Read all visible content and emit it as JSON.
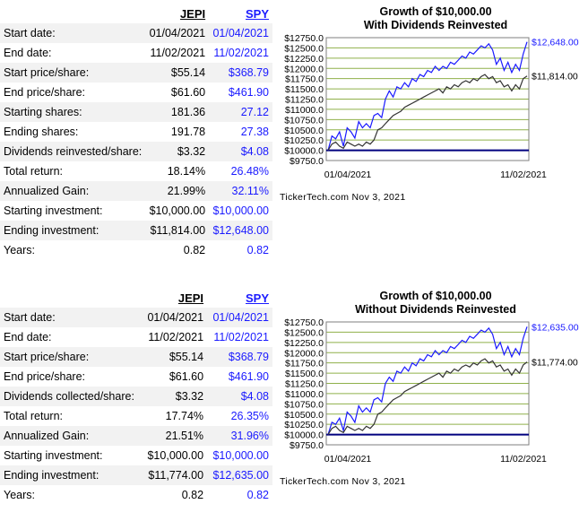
{
  "panels": [
    {
      "headers": {
        "a": "JEPI",
        "b": "SPY"
      },
      "rows": [
        {
          "label": "Start date:",
          "a": "01/04/2021",
          "b": "01/04/2021"
        },
        {
          "label": "End date:",
          "a": "11/02/2021",
          "b": "11/02/2021"
        },
        {
          "label": "Start price/share:",
          "a": "$55.14",
          "b": "$368.79"
        },
        {
          "label": "End price/share:",
          "a": "$61.60",
          "b": "$461.90"
        },
        {
          "label": "Starting shares:",
          "a": "181.36",
          "b": "27.12"
        },
        {
          "label": "Ending shares:",
          "a": "191.78",
          "b": "27.38"
        },
        {
          "label": "Dividends reinvested/share:",
          "a": "$3.32",
          "b": "$4.08"
        },
        {
          "label": "Total return:",
          "a": "18.14%",
          "b": "26.48%"
        },
        {
          "label": "Annualized Gain:",
          "a": "21.99%",
          "b": "32.11%"
        },
        {
          "label": "Starting investment:",
          "a": "$10,000.00",
          "b": "$10,000.00"
        },
        {
          "label": "Ending investment:",
          "a": "$11,814.00",
          "b": "$12,648.00"
        },
        {
          "label": "Years:",
          "a": "0.82",
          "b": "0.82"
        }
      ]
    },
    {
      "headers": {
        "a": "JEPI",
        "b": "SPY"
      },
      "rows": [
        {
          "label": "Start date:",
          "a": "01/04/2021",
          "b": "01/04/2021"
        },
        {
          "label": "End date:",
          "a": "11/02/2021",
          "b": "11/02/2021"
        },
        {
          "label": "Start price/share:",
          "a": "$55.14",
          "b": "$368.79"
        },
        {
          "label": "End price/share:",
          "a": "$61.60",
          "b": "$461.90"
        },
        {
          "label": "Dividends collected/share:",
          "a": "$3.32",
          "b": "$4.08"
        },
        {
          "label": "Total return:",
          "a": "17.74%",
          "b": "26.35%"
        },
        {
          "label": "Annualized Gain:",
          "a": "21.51%",
          "b": "31.96%"
        },
        {
          "label": "Starting investment:",
          "a": "$10,000.00",
          "b": "$10,000.00"
        },
        {
          "label": "Ending investment:",
          "a": "$11,774.00",
          "b": "$12,635.00"
        },
        {
          "label": "Years:",
          "a": "0.82",
          "b": "0.82"
        }
      ]
    }
  ],
  "colors": {
    "spy": "#1a1aff",
    "jepi": "#333333",
    "grid": "#8fb04a",
    "baseline": "#00007f"
  },
  "chart_data": [
    {
      "type": "line",
      "title": "Growth of $10,000.00",
      "subtitle": "With Dividends Reinvested",
      "y_ticks": [
        "$12750.0",
        "$12500.0",
        "$12250.0",
        "$12000.0",
        "$11750.0",
        "$11500.0",
        "$11250.0",
        "$11000.0",
        "$10750.0",
        "$10500.0",
        "$10250.0",
        "$10000.0",
        "$9750.0"
      ],
      "ylim": [
        9750,
        12750
      ],
      "x_start_label": "01/04/2021",
      "x_end_label": "11/02/2021",
      "credit": "TickerTech.com  Nov 3, 2021",
      "grid": true,
      "series": [
        {
          "name": "SPY",
          "end_label": "$12,648.00",
          "values": [
            10000,
            10350,
            10280,
            10450,
            10100,
            10550,
            10450,
            10300,
            10700,
            10550,
            10650,
            10550,
            10850,
            10900,
            10800,
            11250,
            11450,
            11300,
            11550,
            11500,
            11650,
            11550,
            11750,
            11680,
            11850,
            11800,
            11950,
            11900,
            12050,
            11950,
            12050,
            12000,
            12150,
            12100,
            12200,
            12300,
            12250,
            12400,
            12350,
            12450,
            12550,
            12500,
            12600,
            12450,
            12100,
            12250,
            11950,
            12150,
            11900,
            12100,
            11950,
            12350,
            12648
          ]
        },
        {
          "name": "JEPI",
          "end_label": "$11,814.00",
          "values": [
            10000,
            10150,
            10200,
            10100,
            10050,
            10200,
            10150,
            10100,
            10150,
            10100,
            10200,
            10150,
            10250,
            10500,
            10550,
            10650,
            10750,
            10850,
            10900,
            10950,
            11050,
            11100,
            11150,
            11200,
            11250,
            11300,
            11350,
            11400,
            11450,
            11500,
            11400,
            11550,
            11500,
            11600,
            11550,
            11650,
            11700,
            11650,
            11750,
            11700,
            11800,
            11850,
            11750,
            11800,
            11650,
            11700,
            11550,
            11600,
            11450,
            11600,
            11500,
            11750,
            11814
          ]
        }
      ]
    },
    {
      "type": "line",
      "title": "Growth of $10,000.00",
      "subtitle": "Without Dividends Reinvested",
      "y_ticks": [
        "$12750.0",
        "$12500.0",
        "$12250.0",
        "$12000.0",
        "$11750.0",
        "$11500.0",
        "$11250.0",
        "$11000.0",
        "$10750.0",
        "$10500.0",
        "$10250.0",
        "$10000.0",
        "$9750.0"
      ],
      "ylim": [
        9750,
        12750
      ],
      "x_start_label": "01/04/2021",
      "x_end_label": "11/02/2021",
      "credit": "TickerTech.com  Nov 3, 2021",
      "grid": true,
      "series": [
        {
          "name": "SPY",
          "end_label": "$12,635.00",
          "values": [
            10000,
            10300,
            10250,
            10400,
            10100,
            10550,
            10450,
            10300,
            10700,
            10550,
            10650,
            10550,
            10850,
            10900,
            10800,
            11250,
            11400,
            11300,
            11550,
            11500,
            11650,
            11550,
            11750,
            11680,
            11850,
            11800,
            11950,
            11900,
            12050,
            11950,
            12050,
            12000,
            12150,
            12100,
            12200,
            12300,
            12250,
            12400,
            12350,
            12450,
            12550,
            12500,
            12600,
            12450,
            12100,
            12250,
            11950,
            12150,
            11900,
            12100,
            11950,
            12350,
            12635
          ]
        },
        {
          "name": "JEPI",
          "end_label": "$11,774.00",
          "values": [
            10000,
            10150,
            10200,
            10100,
            10050,
            10200,
            10150,
            10100,
            10150,
            10100,
            10200,
            10150,
            10250,
            10500,
            10550,
            10650,
            10750,
            10850,
            10900,
            10950,
            11050,
            11100,
            11150,
            11200,
            11250,
            11300,
            11350,
            11400,
            11450,
            11500,
            11400,
            11550,
            11500,
            11600,
            11550,
            11650,
            11700,
            11650,
            11750,
            11700,
            11800,
            11850,
            11750,
            11800,
            11650,
            11700,
            11550,
            11600,
            11450,
            11600,
            11500,
            11700,
            11774
          ]
        }
      ]
    }
  ]
}
